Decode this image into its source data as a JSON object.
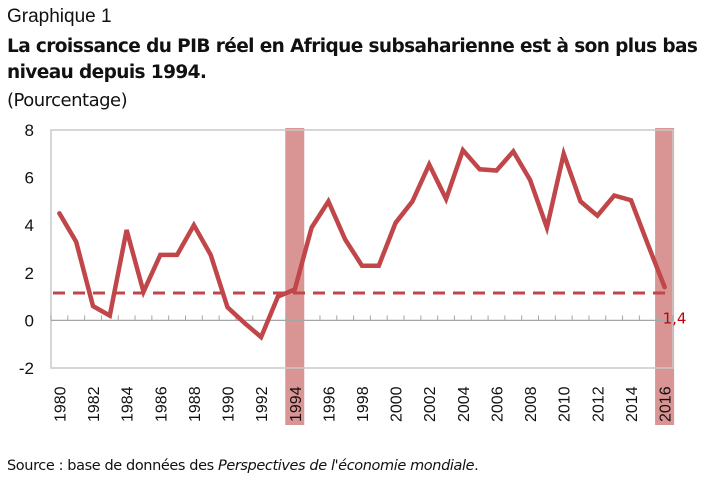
{
  "figure_label": "Graphique 1",
  "title": "La croissance du PIB réel en Afrique subsaharienne est à son plus bas niveau depuis 1994.",
  "unit": "(Pourcentage)",
  "source": {
    "prefix": "Source : base de données des ",
    "italic": "Perspectives  de l'économie mondiale",
    "suffix": "."
  },
  "colors": {
    "line": "#c0464a",
    "highlight_band": "#d99594",
    "axis": "#a6a6a6",
    "data_label": "#c0000c"
  },
  "chart_data": {
    "type": "line",
    "title": "La croissance du PIB réel en Afrique subsaharienne est à son plus bas niveau depuis 1994.",
    "xlabel": "",
    "ylabel": "(Pourcentage)",
    "ylim": [
      -2,
      8
    ],
    "yticks": [
      -2,
      0,
      2,
      4,
      6,
      8
    ],
    "x": [
      1980,
      1981,
      1982,
      1983,
      1984,
      1985,
      1986,
      1987,
      1988,
      1989,
      1990,
      1991,
      1992,
      1993,
      1994,
      1995,
      1996,
      1997,
      1998,
      1999,
      2000,
      2001,
      2002,
      2003,
      2004,
      2005,
      2006,
      2007,
      2008,
      2009,
      2010,
      2011,
      2012,
      2013,
      2014,
      2015,
      2016
    ],
    "xtick_labels": [
      "1980",
      "1982",
      "1984",
      "1986",
      "1988",
      "1990",
      "1992",
      "1994",
      "1996",
      "1998",
      "2000",
      "2002",
      "2004",
      "2006",
      "2008",
      "2010",
      "2012",
      "2014",
      "2016"
    ],
    "series": [
      {
        "name": "Croissance du PIB réel",
        "style": "solid",
        "values": [
          4.5,
          3.3,
          0.6,
          0.2,
          3.8,
          1.2,
          2.75,
          2.75,
          4.0,
          2.75,
          0.55,
          -0.1,
          -0.7,
          1.0,
          1.3,
          3.9,
          5.0,
          3.4,
          2.3,
          2.3,
          4.1,
          5.0,
          6.55,
          5.1,
          7.15,
          6.35,
          6.3,
          7.1,
          5.9,
          3.9,
          7.0,
          5.0,
          4.4,
          5.25,
          5.05,
          3.2,
          1.4
        ]
      },
      {
        "name": "Référence (niveau 2016)",
        "style": "dashed",
        "constant": 1.15
      }
    ],
    "highlighted_years": [
      1994,
      2016
    ],
    "annotations": [
      {
        "x": 2016,
        "text": "1,4"
      }
    ],
    "grid": false,
    "legend": "none"
  }
}
